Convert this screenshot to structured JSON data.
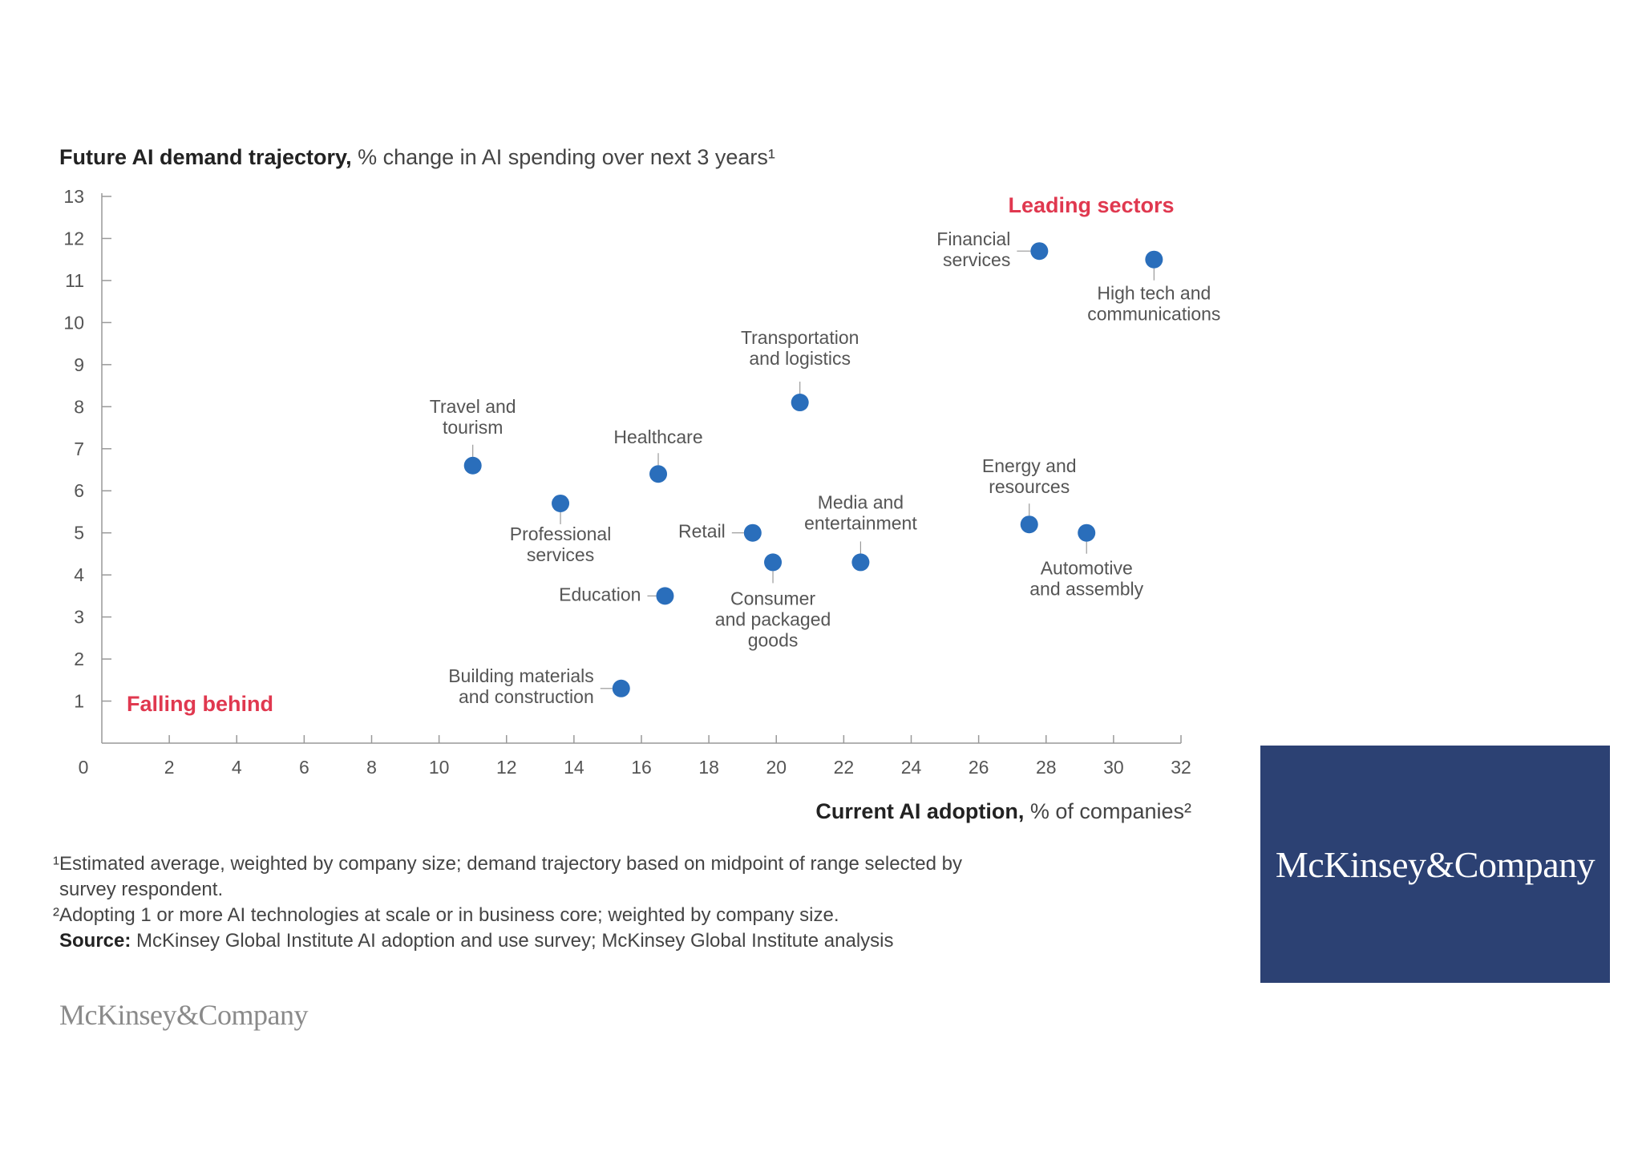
{
  "chart_data": {
    "type": "scatter",
    "title_bold": "Future AI demand trajectory,",
    "title_rest": " % change in AI spending over next 3 years¹",
    "xlabel_bold": "Current AI adoption,",
    "xlabel_rest": " % of companies²",
    "xlim": [
      0,
      32
    ],
    "ylim": [
      0,
      13
    ],
    "xticks": [
      0,
      2,
      4,
      6,
      8,
      10,
      12,
      14,
      16,
      18,
      20,
      22,
      24,
      26,
      28,
      30,
      32
    ],
    "yticks": [
      1,
      2,
      3,
      4,
      5,
      6,
      7,
      8,
      9,
      10,
      11,
      12,
      13
    ],
    "grid": false,
    "point_color": "#2a6ebb",
    "annotation_color": "#e0384f",
    "annotations": {
      "top_right": "Leading sectors",
      "bottom_left": "Falling behind"
    },
    "points": [
      {
        "label": [
          "Financial",
          "services"
        ],
        "x": 27.8,
        "y": 11.7
      },
      {
        "label": [
          "High tech and",
          "communications"
        ],
        "x": 31.2,
        "y": 11.5
      },
      {
        "label": [
          "Transportation",
          "and logistics"
        ],
        "x": 20.7,
        "y": 8.1
      },
      {
        "label": [
          "Travel and",
          "tourism"
        ],
        "x": 11.0,
        "y": 6.6
      },
      {
        "label": [
          "Healthcare"
        ],
        "x": 16.5,
        "y": 6.4
      },
      {
        "label": [
          "Professional",
          "services"
        ],
        "x": 13.6,
        "y": 5.7
      },
      {
        "label": [
          "Retail"
        ],
        "x": 19.3,
        "y": 5.0
      },
      {
        "label": [
          "Consumer",
          "and packaged",
          "goods"
        ],
        "x": 19.9,
        "y": 4.3
      },
      {
        "label": [
          "Media and",
          "entertainment"
        ],
        "x": 22.5,
        "y": 4.3
      },
      {
        "label": [
          "Energy and",
          "resources"
        ],
        "x": 27.5,
        "y": 5.2
      },
      {
        "label": [
          "Automotive",
          "and assembly"
        ],
        "x": 29.2,
        "y": 5.0
      },
      {
        "label": [
          "Education"
        ],
        "x": 16.7,
        "y": 3.5
      },
      {
        "label": [
          "Building materials",
          "and construction"
        ],
        "x": 15.4,
        "y": 1.3
      }
    ]
  },
  "footnotes": {
    "note1": "¹Estimated average, weighted by company size; demand trajectory based on midpoint of range selected by",
    "note1b": "survey respondent.",
    "note2": "²Adopting 1 or more AI technologies at scale or in business core; weighted by company size.",
    "source_label": "Source:",
    "source_text": " McKinsey Global Institute AI adoption and use survey; McKinsey Global Institute analysis"
  },
  "logos": {
    "bottom": "McKinsey&Company",
    "box": "McKinsey&Company",
    "box_color": "#2c4173"
  }
}
